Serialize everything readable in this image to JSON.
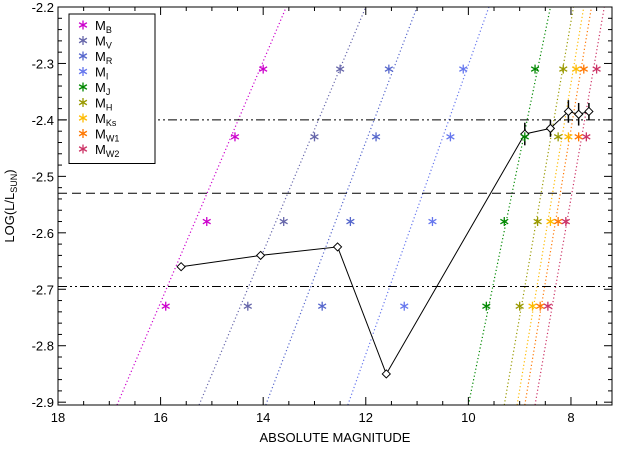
{
  "chart_data": {
    "type": "scatter",
    "xlabel": "ABSOLUTE MAGNITUDE",
    "ylabel_main": "LOG(L/L",
    "ylabel_sub": "SUN",
    "ylabel_close": ")",
    "xlim": [
      18,
      7.2
    ],
    "ylim": [
      -2.905,
      -2.2
    ],
    "x_ticks": [
      18,
      16,
      14,
      12,
      10,
      8
    ],
    "y_ticks": [
      -2.9,
      -2.8,
      -2.7,
      -2.6,
      -2.5,
      -2.4,
      -2.3,
      -2.2
    ],
    "x_tick_labels": [
      "18",
      "16",
      "14",
      "12",
      "10",
      "8"
    ],
    "y_tick_labels": [
      "-2.9",
      "-2.8",
      "-2.7",
      "-2.6",
      "-2.5",
      "-2.4",
      "-2.3",
      "-2.2"
    ],
    "reference_lines": [
      {
        "style": "dash-dot-dot",
        "y": -2.4
      },
      {
        "style": "dashed",
        "y": -2.53
      },
      {
        "style": "dash-dot-dot",
        "y": -2.695
      }
    ],
    "levels": [
      -2.31,
      -2.43,
      -2.58,
      -2.73
    ],
    "series": [
      {
        "label": "M",
        "sub": "B",
        "color": "#cc00cc",
        "x": [
          14.0,
          14.55,
          15.1,
          15.9
        ],
        "line": [
          [
            16.85,
            -2.905
          ],
          [
            13.55,
            -2.2
          ]
        ]
      },
      {
        "label": "M",
        "sub": "V",
        "color": "#6666aa",
        "x": [
          12.5,
          13.0,
          13.6,
          14.3
        ],
        "line": [
          [
            15.25,
            -2.905
          ],
          [
            12.0,
            -2.2
          ]
        ]
      },
      {
        "label": "M",
        "sub": "R",
        "color": "#5566cc",
        "x": [
          11.55,
          11.8,
          12.3,
          12.85
        ],
        "line": [
          [
            13.95,
            -2.905
          ],
          [
            11.0,
            -2.2
          ]
        ]
      },
      {
        "label": "M",
        "sub": "I",
        "color": "#6677ee",
        "x": [
          10.1,
          10.35,
          10.7,
          11.25
        ],
        "line": [
          [
            12.35,
            -2.905
          ],
          [
            9.6,
            -2.2
          ]
        ]
      },
      {
        "label": "M",
        "sub": "J",
        "color": "#008800",
        "x": [
          8.7,
          8.9,
          9.3,
          9.65
        ],
        "line": [
          [
            10.0,
            -2.905
          ],
          [
            8.4,
            -2.2
          ]
        ]
      },
      {
        "label": "M",
        "sub": "H",
        "color": "#999900",
        "x": [
          8.15,
          8.25,
          8.65,
          9.0
        ],
        "line": [
          [
            9.3,
            -2.905
          ],
          [
            7.95,
            -2.2
          ]
        ]
      },
      {
        "label": "M",
        "sub": "Ks",
        "color": "#ffbb00",
        "x": [
          7.9,
          8.05,
          8.4,
          8.75
        ],
        "line": [
          [
            9.05,
            -2.905
          ],
          [
            7.75,
            -2.2
          ]
        ]
      },
      {
        "label": "M",
        "sub": "W1",
        "color": "#ff7700",
        "x": [
          7.75,
          7.85,
          8.25,
          8.6
        ],
        "line": [
          [
            8.9,
            -2.905
          ],
          [
            7.6,
            -2.2
          ]
        ]
      },
      {
        "label": "M",
        "sub": "W2",
        "color": "#cc3366",
        "x": [
          7.5,
          7.7,
          8.1,
          8.45
        ],
        "line": [
          [
            8.7,
            -2.905
          ],
          [
            7.35,
            -2.2
          ]
        ]
      }
    ],
    "measured": {
      "x": [
        15.6,
        14.05,
        12.55,
        11.6,
        8.9,
        8.4,
        8.05,
        7.85,
        7.65
      ],
      "y": [
        -2.66,
        -2.64,
        -2.625,
        -2.85,
        -2.425,
        -2.415,
        -2.385,
        -2.39,
        -2.385
      ],
      "yerr": [
        0.0,
        0.0,
        0.0,
        0.0,
        0.02,
        0.015,
        0.02,
        0.02,
        0.015
      ]
    }
  }
}
